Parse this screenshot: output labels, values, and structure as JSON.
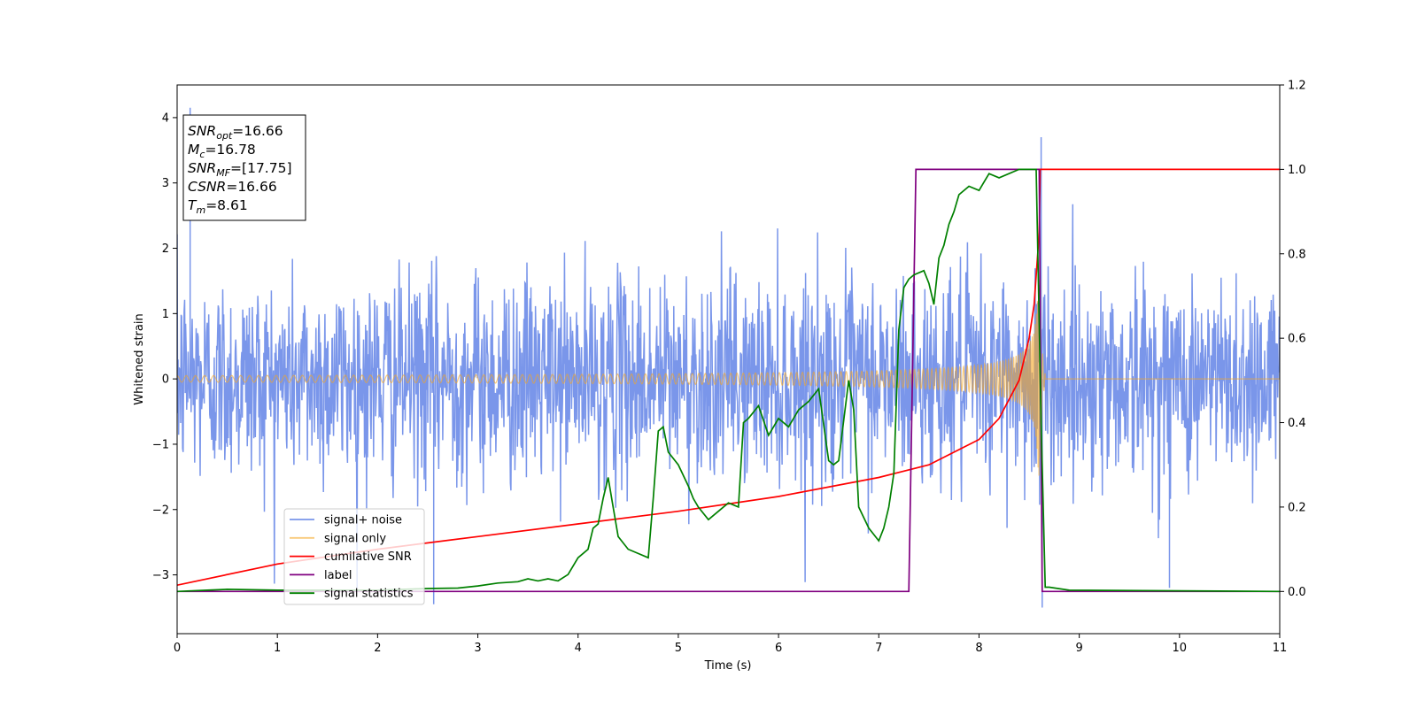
{
  "chart_data": {
    "type": "line",
    "xlabel": "Time (s)",
    "ylabel_left": "Whitened strain",
    "ylabel_right": "",
    "xlim": [
      0,
      11
    ],
    "ylim_left": [
      -3.9,
      4.5
    ],
    "ylim_right": [
      -0.1,
      1.2
    ],
    "x_ticks": [
      0,
      1,
      2,
      3,
      4,
      5,
      6,
      7,
      8,
      9,
      10,
      11
    ],
    "y_ticks_left": [
      -3,
      -2,
      -1,
      0,
      1,
      2,
      3,
      4
    ],
    "y_ticks_right": [
      "0.0",
      "0.2",
      "0.4",
      "0.6",
      "0.8",
      "1.0",
      "1.2"
    ],
    "grid": false,
    "legend_placement": "lower-left",
    "annotation": [
      {
        "base": "SNR",
        "sub": "opt",
        "value": "=16.66"
      },
      {
        "base": "M",
        "sub": "c",
        "value": "=16.78"
      },
      {
        "base": "SNR",
        "sub": "MF",
        "value": "=[17.75]"
      },
      {
        "base": "CSNR",
        "sub": "",
        "value": "=16.66"
      },
      {
        "base": "T",
        "sub": "m",
        "value": "=8.61"
      }
    ],
    "series": [
      {
        "name": "signal+ noise",
        "color": "#4169e1",
        "axis": "left",
        "kind": "noise",
        "noise_std": 0.78,
        "sample_count": 2200,
        "spike_extremes": [
          [
            0.13,
            4.15
          ],
          [
            8.62,
            3.7
          ],
          [
            8.63,
            -3.5
          ],
          [
            2.56,
            -3.45
          ],
          [
            9.9,
            -3.2
          ]
        ]
      },
      {
        "name": "signal only",
        "color": "#f5a623",
        "axis": "left",
        "kind": "chirp",
        "t_merger": 8.61,
        "amplitude_start": 0.05,
        "peak_amplitude": 1.7,
        "cycles": 150
      },
      {
        "name": "cumilative SNR",
        "color": "#ff0000",
        "axis": "right",
        "x": [
          0,
          1,
          2,
          3,
          4,
          5,
          6,
          7,
          7.5,
          8,
          8.2,
          8.4,
          8.5,
          8.55,
          8.6,
          8.61,
          11
        ],
        "y": [
          0.015,
          0.065,
          0.1,
          0.13,
          0.16,
          0.19,
          0.225,
          0.27,
          0.3,
          0.36,
          0.41,
          0.5,
          0.6,
          0.68,
          0.85,
          1.0,
          1.0
        ]
      },
      {
        "name": "label",
        "color": "#800080",
        "axis": "right",
        "x": [
          0,
          7.3,
          7.37,
          8.6,
          8.63,
          11
        ],
        "y": [
          0,
          0,
          1,
          1,
          0,
          0
        ]
      },
      {
        "name": "signal statistics",
        "color": "#008000",
        "axis": "right",
        "x": [
          0,
          0.3,
          0.5,
          1,
          1.5,
          2,
          2.5,
          2.8,
          3,
          3.2,
          3.4,
          3.5,
          3.6,
          3.7,
          3.8,
          3.9,
          4,
          4.1,
          4.15,
          4.2,
          4.25,
          4.3,
          4.35,
          4.4,
          4.5,
          4.6,
          4.7,
          4.75,
          4.8,
          4.85,
          4.9,
          5,
          5.1,
          5.15,
          5.2,
          5.3,
          5.4,
          5.5,
          5.6,
          5.65,
          5.7,
          5.8,
          5.9,
          6,
          6.1,
          6.2,
          6.3,
          6.4,
          6.5,
          6.55,
          6.6,
          6.7,
          6.75,
          6.8,
          6.9,
          7,
          7.05,
          7.1,
          7.15,
          7.2,
          7.25,
          7.3,
          7.35,
          7.45,
          7.5,
          7.55,
          7.6,
          7.65,
          7.7,
          7.75,
          7.8,
          7.9,
          8,
          8.05,
          8.1,
          8.2,
          8.4,
          8.57,
          8.62,
          8.66,
          8.7,
          8.9,
          11
        ],
        "y": [
          0,
          0.003,
          0.005,
          0.003,
          0.003,
          0.003,
          0.007,
          0.008,
          0.013,
          0.02,
          0.023,
          0.03,
          0.025,
          0.03,
          0.025,
          0.04,
          0.08,
          0.1,
          0.15,
          0.16,
          0.22,
          0.27,
          0.2,
          0.13,
          0.1,
          0.09,
          0.08,
          0.22,
          0.38,
          0.39,
          0.33,
          0.3,
          0.25,
          0.22,
          0.2,
          0.17,
          0.19,
          0.21,
          0.2,
          0.4,
          0.41,
          0.44,
          0.37,
          0.41,
          0.39,
          0.43,
          0.45,
          0.48,
          0.31,
          0.3,
          0.31,
          0.5,
          0.43,
          0.2,
          0.15,
          0.12,
          0.15,
          0.2,
          0.28,
          0.62,
          0.72,
          0.74,
          0.75,
          0.76,
          0.73,
          0.68,
          0.79,
          0.82,
          0.87,
          0.9,
          0.94,
          0.96,
          0.95,
          0.97,
          0.99,
          0.98,
          1.0,
          1.0,
          0.4,
          0.01,
          0.01,
          0.003,
          0
        ]
      }
    ]
  }
}
